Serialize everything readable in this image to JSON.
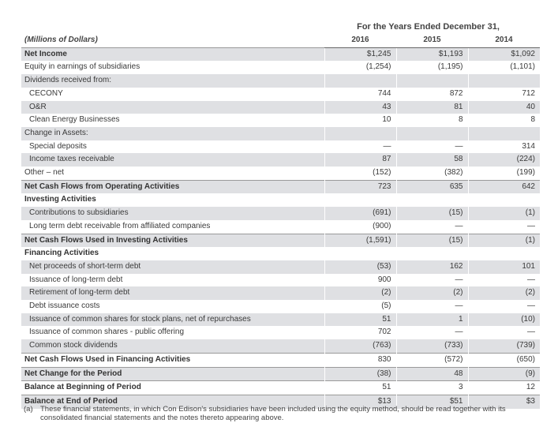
{
  "header": {
    "period": "For the Years Ended December 31,",
    "units": "(Millions of Dollars)",
    "years": [
      "2016",
      "2015",
      "2014"
    ]
  },
  "rows": [
    {
      "label": "Net Income",
      "values": [
        "$1,245",
        "$1,193",
        "$1,092"
      ],
      "style": "bold",
      "shade": true
    },
    {
      "label": "Equity in earnings of subsidiaries",
      "values": [
        "(1,254)",
        "(1,195)",
        "(1,101)"
      ],
      "style": "normal",
      "shade": false
    },
    {
      "label": "Dividends received from:",
      "values": [
        "",
        "",
        ""
      ],
      "style": "normal",
      "shade": true
    },
    {
      "label": "CECONY",
      "values": [
        "744",
        "872",
        "712"
      ],
      "style": "indent",
      "shade": false
    },
    {
      "label": "O&R",
      "values": [
        "43",
        "81",
        "40"
      ],
      "style": "indent",
      "shade": true
    },
    {
      "label": "Clean Energy Businesses",
      "values": [
        "10",
        "8",
        "8"
      ],
      "style": "indent",
      "shade": false
    },
    {
      "label": "Change in Assets:",
      "values": [
        "",
        "",
        ""
      ],
      "style": "normal",
      "shade": true
    },
    {
      "label": "Special deposits",
      "values": [
        "—",
        "—",
        "314"
      ],
      "style": "indent",
      "shade": false
    },
    {
      "label": "Income taxes receivable",
      "values": [
        "87",
        "58",
        "(224)"
      ],
      "style": "indent",
      "shade": true
    },
    {
      "label": "Other – net",
      "values": [
        "(152)",
        "(382)",
        "(199)"
      ],
      "style": "normal",
      "shade": false
    },
    {
      "label": "Net Cash Flows from Operating Activities",
      "values": [
        "723",
        "635",
        "642"
      ],
      "style": "bold",
      "shade": true
    },
    {
      "label": "Investing Activities",
      "values": [
        "",
        "",
        ""
      ],
      "style": "heading",
      "shade": false
    },
    {
      "label": "Contributions to subsidiaries",
      "values": [
        "(691)",
        "(15)",
        "(1)"
      ],
      "style": "indent",
      "shade": true
    },
    {
      "label": "Long term debt receivable from affiliated companies",
      "values": [
        "(900)",
        "—",
        "—"
      ],
      "style": "indent",
      "shade": false
    },
    {
      "label": "Net Cash Flows Used in Investing Activities",
      "values": [
        "(1,591)",
        "(15)",
        "(1)"
      ],
      "style": "bold",
      "shade": true
    },
    {
      "label": "Financing Activities",
      "values": [
        "",
        "",
        ""
      ],
      "style": "heading",
      "shade": false
    },
    {
      "label": "Net proceeds of short-term debt",
      "values": [
        "(53)",
        "162",
        "101"
      ],
      "style": "indent",
      "shade": true
    },
    {
      "label": "Issuance of long-term debt",
      "values": [
        "900",
        "—",
        "—"
      ],
      "style": "indent",
      "shade": false
    },
    {
      "label": "Retirement of long-term debt",
      "values": [
        "(2)",
        "(2)",
        "(2)"
      ],
      "style": "indent",
      "shade": true
    },
    {
      "label": "Debt issuance costs",
      "values": [
        "(5)",
        "—",
        "—"
      ],
      "style": "indent",
      "shade": false
    },
    {
      "label": "Issuance of common shares for stock plans, net of repurchases",
      "values": [
        "51",
        "1",
        "(10)"
      ],
      "style": "indent",
      "shade": true
    },
    {
      "label": "Issuance of common shares - public offering",
      "values": [
        "702",
        "—",
        "—"
      ],
      "style": "indent",
      "shade": false
    },
    {
      "label": "Common stock dividends",
      "values": [
        "(763)",
        "(733)",
        "(739)"
      ],
      "style": "indent",
      "shade": true
    },
    {
      "label": "Net Cash Flows Used in Financing Activities",
      "values": [
        "830",
        "(572)",
        "(650)"
      ],
      "style": "bold",
      "shade": false
    },
    {
      "label": "Net Change for the Period",
      "values": [
        "(38)",
        "48",
        "(9)"
      ],
      "style": "bold",
      "shade": true
    },
    {
      "label": "Balance at Beginning of Period",
      "values": [
        "51",
        "3",
        "12"
      ],
      "style": "bold",
      "shade": false
    },
    {
      "label": "Balance at End of Period",
      "values": [
        "$13",
        "$51",
        "$3"
      ],
      "style": "bold",
      "shade": true
    }
  ],
  "footnote": {
    "mark": "(a)",
    "text": "These financial statements, in which Con Edison's subsidiaries have been included using the equity method, should be read together with its consolidated financial statements and the notes thereto appearing above."
  }
}
